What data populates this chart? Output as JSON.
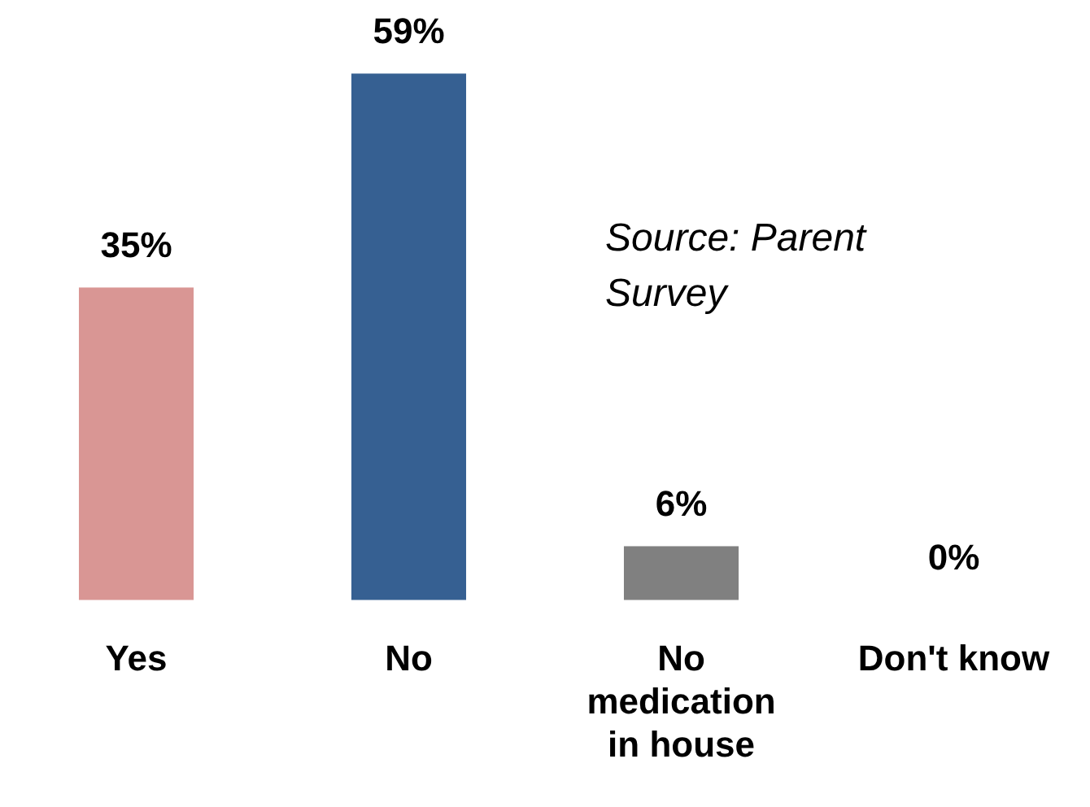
{
  "chart_data": {
    "type": "bar",
    "categories": [
      "Yes",
      "No",
      "No medication in house",
      "Don't know"
    ],
    "values": [
      35,
      59,
      6,
      0
    ],
    "colors": [
      "#d99694",
      "#366092",
      "#808080",
      "#000000"
    ],
    "value_labels": [
      "35%",
      "59%",
      "6%",
      "0%"
    ],
    "annotations": [
      "Source: Parent Survey"
    ],
    "grid": false,
    "legend": false
  }
}
